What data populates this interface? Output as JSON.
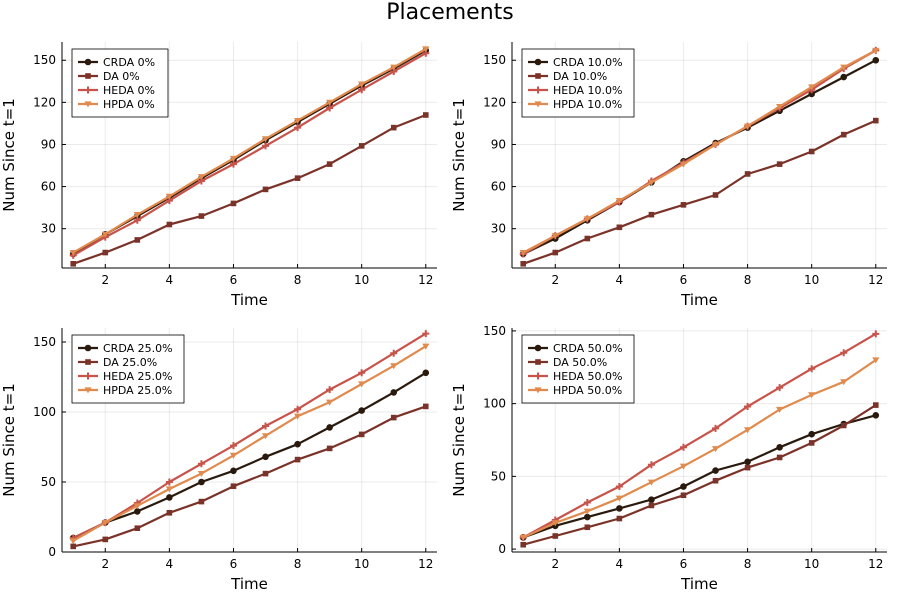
{
  "title": "Placements",
  "colors": {
    "CRDA": "#2a1a0e",
    "DA": "#7b3228",
    "HEDA": "#c8534a",
    "HPDA": "#e08a4d"
  },
  "chart_data": [
    {
      "type": "line",
      "xlabel": "Time",
      "ylabel": "Num Since t=1",
      "xlim": [
        0.65,
        12.35
      ],
      "ylim": [
        2,
        163
      ],
      "xticks": [
        2,
        4,
        6,
        8,
        10,
        12
      ],
      "yticks": [
        30,
        60,
        90,
        120,
        150
      ],
      "legend_position": "top-left",
      "x": [
        1,
        2,
        3,
        4,
        5,
        6,
        7,
        8,
        9,
        10,
        11,
        12
      ],
      "series": [
        {
          "name": "CRDA 0%",
          "key": "CRDA",
          "marker": "circle",
          "values": [
            12,
            26,
            39,
            52,
            66,
            79,
            93,
            106,
            119,
            132,
            144,
            157
          ]
        },
        {
          "name": "DA 0%",
          "key": "DA",
          "marker": "square",
          "values": [
            5,
            13,
            22,
            33,
            39,
            48,
            58,
            66,
            76,
            89,
            102,
            111
          ]
        },
        {
          "name": "HEDA 0%",
          "key": "HEDA",
          "marker": "cross",
          "values": [
            11,
            24,
            36,
            50,
            64,
            76,
            89,
            102,
            116,
            129,
            142,
            155
          ]
        },
        {
          "name": "HPDA 0%",
          "key": "HPDA",
          "marker": "triangle",
          "values": [
            13,
            26,
            40,
            53,
            67,
            80,
            94,
            107,
            120,
            133,
            145,
            158
          ]
        }
      ]
    },
    {
      "type": "line",
      "xlabel": "Time",
      "ylabel": "Num Since t=1",
      "xlim": [
        0.65,
        12.35
      ],
      "ylim": [
        2,
        163
      ],
      "xticks": [
        2,
        4,
        6,
        8,
        10,
        12
      ],
      "yticks": [
        30,
        60,
        90,
        120,
        150
      ],
      "legend_position": "top-left",
      "x": [
        1,
        2,
        3,
        4,
        5,
        6,
        7,
        8,
        9,
        10,
        11,
        12
      ],
      "series": [
        {
          "name": "CRDA 10.0%",
          "key": "CRDA",
          "marker": "circle",
          "values": [
            12,
            23,
            36,
            49,
            63,
            78,
            91,
            102,
            114,
            126,
            138,
            150
          ]
        },
        {
          "name": "DA 10.0%",
          "key": "DA",
          "marker": "square",
          "values": [
            5,
            13,
            23,
            31,
            40,
            47,
            54,
            69,
            76,
            85,
            97,
            107
          ]
        },
        {
          "name": "HEDA 10.0%",
          "key": "HEDA",
          "marker": "cross",
          "values": [
            12,
            25,
            37,
            49,
            64,
            77,
            90,
            103,
            116,
            129,
            144,
            157
          ]
        },
        {
          "name": "HPDA 10.0%",
          "key": "HPDA",
          "marker": "triangle",
          "values": [
            13,
            25,
            37,
            50,
            63,
            76,
            90,
            103,
            117,
            131,
            145,
            157
          ]
        }
      ]
    },
    {
      "type": "line",
      "xlabel": "Time",
      "ylabel": "Num Since t=1",
      "xlim": [
        0.65,
        12.35
      ],
      "ylim": [
        0,
        160
      ],
      "xticks": [
        2,
        4,
        6,
        8,
        10,
        12
      ],
      "yticks": [
        0,
        50,
        100,
        150
      ],
      "legend_position": "top-left",
      "x": [
        1,
        2,
        3,
        4,
        5,
        6,
        7,
        8,
        9,
        10,
        11,
        12
      ],
      "series": [
        {
          "name": "CRDA 25.0%",
          "key": "CRDA",
          "marker": "circle",
          "values": [
            10,
            21,
            29,
            39,
            50,
            58,
            68,
            77,
            89,
            101,
            114,
            128
          ]
        },
        {
          "name": "DA 25.0%",
          "key": "DA",
          "marker": "square",
          "values": [
            4,
            9,
            17,
            28,
            36,
            47,
            56,
            66,
            74,
            84,
            96,
            104
          ]
        },
        {
          "name": "HEDA 25.0%",
          "key": "HEDA",
          "marker": "cross",
          "values": [
            10,
            21,
            35,
            50,
            63,
            76,
            90,
            102,
            116,
            128,
            142,
            156
          ]
        },
        {
          "name": "HPDA 25.0%",
          "key": "HPDA",
          "marker": "triangle",
          "values": [
            8,
            21,
            33,
            45,
            56,
            69,
            83,
            97,
            107,
            120,
            133,
            147
          ]
        }
      ]
    },
    {
      "type": "line",
      "xlabel": "Time",
      "ylabel": "Num Since t=1",
      "xlim": [
        0.65,
        12.35
      ],
      "ylim": [
        -2,
        152
      ],
      "xticks": [
        2,
        4,
        6,
        8,
        10,
        12
      ],
      "yticks": [
        0,
        50,
        100,
        150
      ],
      "legend_position": "top-left",
      "x": [
        1,
        2,
        3,
        4,
        5,
        6,
        7,
        8,
        9,
        10,
        11,
        12
      ],
      "series": [
        {
          "name": "CRDA 50.0%",
          "key": "CRDA",
          "marker": "circle",
          "values": [
            8,
            16,
            22,
            28,
            34,
            43,
            54,
            60,
            70,
            79,
            86,
            92
          ]
        },
        {
          "name": "DA 50.0%",
          "key": "DA",
          "marker": "square",
          "values": [
            3,
            9,
            15,
            21,
            30,
            37,
            47,
            56,
            63,
            73,
            85,
            99
          ]
        },
        {
          "name": "HEDA 50.0%",
          "key": "HEDA",
          "marker": "cross",
          "values": [
            8,
            20,
            32,
            43,
            58,
            70,
            83,
            98,
            111,
            124,
            135,
            148
          ]
        },
        {
          "name": "HPDA 50.0%",
          "key": "HPDA",
          "marker": "triangle",
          "values": [
            8,
            18,
            26,
            35,
            46,
            57,
            69,
            82,
            96,
            106,
            115,
            130
          ]
        }
      ]
    }
  ]
}
